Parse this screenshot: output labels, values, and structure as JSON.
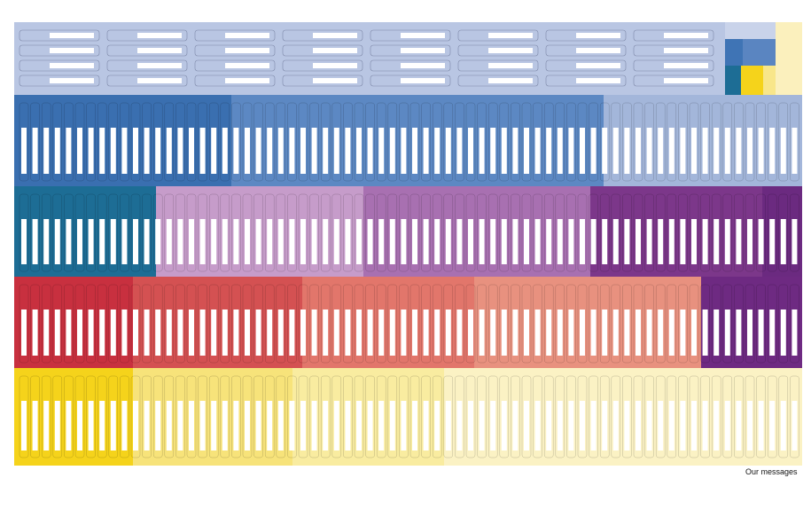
{
  "caption": "Our messages"
}
